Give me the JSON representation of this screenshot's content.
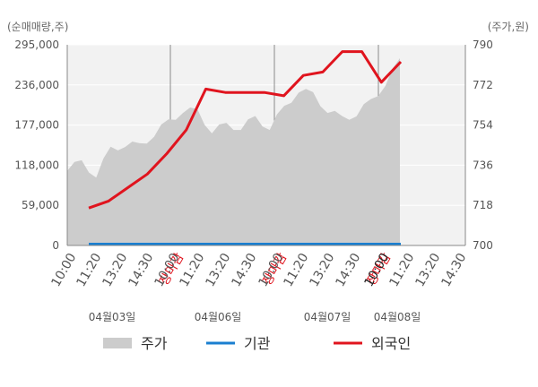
{
  "chart_data": {
    "type": "line",
    "left_unit_label": "(순매매량,주)",
    "right_unit_label": "(주가,원)",
    "left_axis": {
      "ticks": [
        "295,000",
        "236,000",
        "177,000",
        "118,000",
        "59,000",
        "0"
      ],
      "values": [
        295000,
        236000,
        177000,
        118000,
        59000,
        0
      ]
    },
    "right_axis": {
      "ticks": [
        "790",
        "772",
        "754",
        "736",
        "718",
        "700"
      ],
      "values": [
        790,
        772,
        754,
        736,
        718,
        700
      ]
    },
    "x_tick_labels": [
      "10:00",
      "11:20",
      "13:20",
      "14:30",
      "장마감",
      "10:00",
      "11:20",
      "13:20",
      "14:30",
      "장마감",
      "10:00",
      "11:20",
      "13:20",
      "14:30",
      "장마감",
      "10:00",
      "11:20",
      "13:20",
      "14:30"
    ],
    "x_tick_colors": [
      "#555555",
      "#555555",
      "#555555",
      "#555555",
      "#e0141e",
      "#555555",
      "#555555",
      "#555555",
      "#555555",
      "#e0141e",
      "#555555",
      "#555555",
      "#555555",
      "#555555",
      "#e0141e",
      "#555555",
      "#555555",
      "#555555",
      "#555555"
    ],
    "x_tick_dark_index": 15,
    "day_labels": [
      "04월03일",
      "04월06일",
      "04월07일",
      "04월08일"
    ],
    "legend": [
      {
        "label": "주가",
        "color": "#cccccc",
        "kind": "area"
      },
      {
        "label": "기관",
        "color": "#1a7fd0",
        "kind": "line"
      },
      {
        "label": "외국인",
        "color": "#e0141e",
        "kind": "line"
      }
    ],
    "series_foreign": {
      "name": "외국인",
      "color": "#e0141e",
      "values": [
        55000,
        65000,
        85000,
        105000,
        135000,
        170000,
        230000,
        225000,
        225000,
        225000,
        220000,
        250000,
        255000,
        285000,
        285000,
        240000,
        270000
      ]
    },
    "series_institution": {
      "name": "기관",
      "color": "#1a7fd0",
      "values": [
        0,
        0
      ]
    },
    "price_area": {
      "color": "#cccccc",
      "values": [
        115000,
        120000,
        105000,
        140000,
        150000,
        145000,
        165000,
        180000,
        200000,
        195000,
        170000,
        175000,
        175000,
        185000,
        175000,
        200000,
        230000,
        220000,
        200000,
        185000,
        195000,
        210000,
        240000,
        270000
      ]
    }
  }
}
